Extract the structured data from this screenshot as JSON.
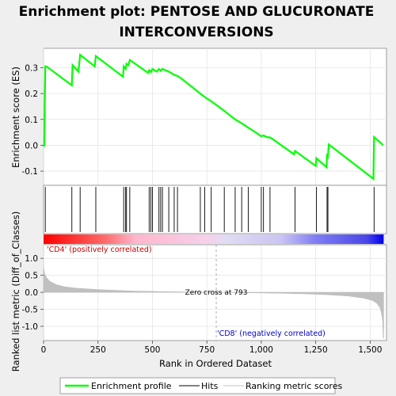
{
  "chart_data": {
    "type": "line",
    "title_lines": [
      "Enrichment plot: PENTOSE AND GLUCURONATE",
      "INTERCONVERSIONS"
    ],
    "top_panel": {
      "ylabel": "Enrichment score (ES)",
      "ylim": [
        -0.155,
        0.375
      ],
      "yticks": [
        -0.1,
        0.0,
        0.1,
        0.2,
        0.3
      ],
      "ytick_labels": [
        "-0.1",
        "0.0",
        "0.1",
        "0.2",
        "0.3"
      ],
      "series": [
        {
          "name": "Enrichment profile",
          "color": "#00ff00",
          "points": [
            [
              0,
              0
            ],
            [
              3,
              -0.005
            ],
            [
              8,
              0.305
            ],
            [
              13,
              0.305
            ],
            [
              130,
              0.232
            ],
            [
              133,
              0.31
            ],
            [
              160,
              0.285
            ],
            [
              168,
              0.35
            ],
            [
              235,
              0.305
            ],
            [
              240,
              0.345
            ],
            [
              365,
              0.265
            ],
            [
              368,
              0.305
            ],
            [
              377,
              0.295
            ],
            [
              381,
              0.315
            ],
            [
              390,
              0.31
            ],
            [
              396,
              0.33
            ],
            [
              480,
              0.28
            ],
            [
              485,
              0.29
            ],
            [
              493,
              0.283
            ],
            [
              500,
              0.295
            ],
            [
              520,
              0.285
            ],
            [
              530,
              0.295
            ],
            [
              538,
              0.288
            ],
            [
              546,
              0.295
            ],
            [
              560,
              0.29
            ],
            [
              575,
              0.285
            ],
            [
              585,
              0.28
            ],
            [
              600,
              0.272
            ],
            [
              615,
              0.268
            ],
            [
              630,
              0.26
            ],
            [
              720,
              0.2
            ],
            [
              740,
              0.187
            ],
            [
              770,
              0.17
            ],
            [
              800,
              0.152
            ],
            [
              830,
              0.133
            ],
            [
              860,
              0.113
            ],
            [
              880,
              0.1
            ],
            [
              910,
              0.085
            ],
            [
              940,
              0.068
            ],
            [
              965,
              0.055
            ],
            [
              990,
              0.04
            ],
            [
              1000,
              0.035
            ],
            [
              1010,
              0.038
            ],
            [
              1025,
              0.032
            ],
            [
              1040,
              0.03
            ],
            [
              1050,
              0.025
            ],
            [
              1150,
              -0.035
            ],
            [
              1155,
              -0.022
            ],
            [
              1250,
              -0.08
            ],
            [
              1253,
              -0.05
            ],
            [
              1300,
              -0.085
            ],
            [
              1302,
              -0.04
            ],
            [
              1306,
              -0.045
            ],
            [
              1310,
              0.003
            ],
            [
              1515,
              -0.13
            ],
            [
              1518,
              0.032
            ],
            [
              1560,
              0.0
            ]
          ]
        }
      ]
    },
    "hits_x": [
      8,
      130,
      168,
      240,
      368,
      377,
      381,
      396,
      485,
      493,
      500,
      530,
      538,
      546,
      575,
      600,
      615,
      720,
      740,
      770,
      830,
      880,
      910,
      940,
      1000,
      1010,
      1040,
      1155,
      1253,
      1302,
      1306,
      1518
    ],
    "xlabel": "Rank in Ordered Dataset",
    "xlim": [
      0,
      1575
    ],
    "xticks": [
      0,
      250,
      500,
      750,
      1000,
      1250,
      1500
    ],
    "xtick_labels": [
      "0",
      "250",
      "500",
      "750",
      "1,000",
      "1,250",
      "1,500"
    ],
    "bottom_panel": {
      "ylabel": "Ranked list metric (Diff_of_Classes)",
      "ylim": [
        -1.42,
        1.4
      ],
      "yticks": [
        -1.0,
        -0.5,
        0.0,
        0.5,
        1.0
      ],
      "ytick_labels": [
        "-1.0",
        "-0.5",
        "0.0",
        "0.5",
        "1.0"
      ],
      "zero_cross_rank": 793,
      "zero_cross_label": "Zero cross at 793",
      "positive_label": "'CD4' (positively correlated)",
      "negative_label": "'CD8' (negatively correlated)",
      "metric_curve": [
        [
          0,
          0.72
        ],
        [
          5,
          0.55
        ],
        [
          15,
          0.42
        ],
        [
          30,
          0.32
        ],
        [
          60,
          0.22
        ],
        [
          100,
          0.16
        ],
        [
          150,
          0.12
        ],
        [
          250,
          0.08
        ],
        [
          400,
          0.04
        ],
        [
          550,
          0.02
        ],
        [
          700,
          0.007
        ],
        [
          793,
          0.0
        ],
        [
          900,
          -0.01
        ],
        [
          1050,
          -0.025
        ],
        [
          1200,
          -0.045
        ],
        [
          1300,
          -0.07
        ],
        [
          1400,
          -0.11
        ],
        [
          1470,
          -0.17
        ],
        [
          1510,
          -0.24
        ],
        [
          1530,
          -0.32
        ],
        [
          1545,
          -0.45
        ],
        [
          1552,
          -0.62
        ],
        [
          1557,
          -0.85
        ],
        [
          1560,
          -1.35
        ],
        [
          1562,
          -1.35
        ]
      ]
    },
    "legend": [
      {
        "label": "Enrichment profile",
        "color": "#00ff00"
      },
      {
        "label": "Hits",
        "color": "#000000"
      },
      {
        "label": "Ranking metric scores",
        "color": "#c0c0c0"
      }
    ],
    "colorbar": {
      "n_ranks": 1562,
      "positive_color": "#ff0000",
      "negative_color": "#0000ff"
    }
  }
}
